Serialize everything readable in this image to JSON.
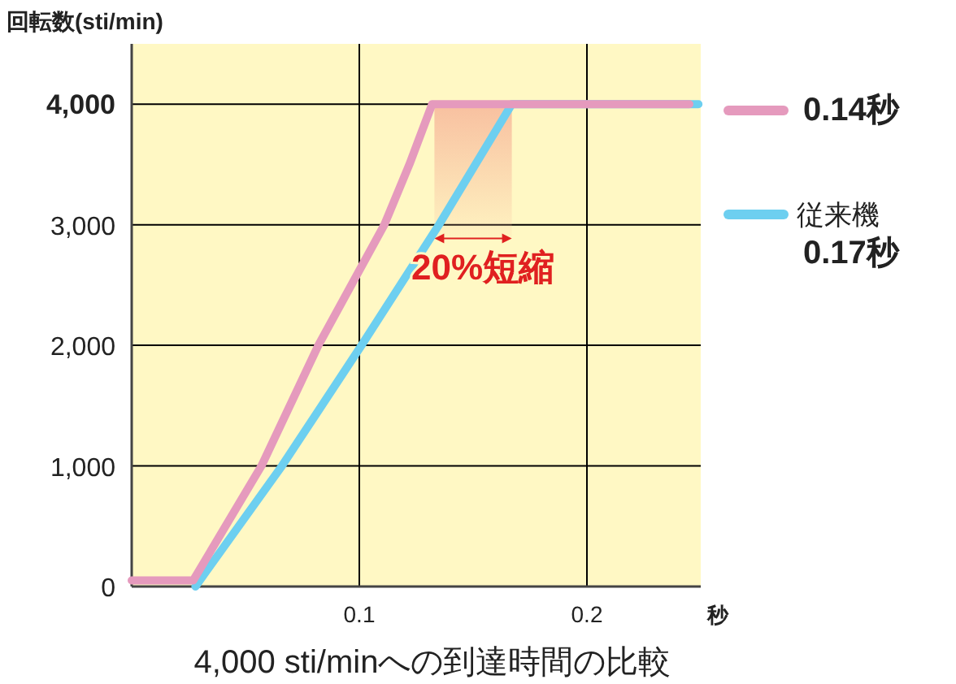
{
  "chart_data": {
    "type": "line",
    "title": "4,000 sti/minへの到達時間の比較",
    "xlabel": "秒",
    "ylabel": "回転数(sti/min)",
    "xlim": [
      0,
      0.25
    ],
    "xticks": [
      0.1,
      0.2
    ],
    "ylim": [
      0,
      4500
    ],
    "yticks": [
      {
        "value": 0,
        "label": "0"
      },
      {
        "value": 1000,
        "label": "1,000"
      },
      {
        "value": 2000,
        "label": "2,000"
      },
      {
        "value": 3000,
        "label": "3,000"
      },
      {
        "value": 4000,
        "label": "4,000"
      }
    ],
    "grid": true,
    "legend": "right",
    "line_style": "solid",
    "marker": "none",
    "series": [
      {
        "name": "従来機 0.17秒",
        "color": "#6dcff0",
        "x": [
          0.028,
          0.066,
          0.101,
          0.135,
          0.167,
          0.249
        ],
        "values": [
          0,
          1000,
          2000,
          3000,
          4000,
          4000
        ]
      },
      {
        "name": "0.14秒",
        "color": "#e59abd",
        "x": [
          0,
          0.027,
          0.057,
          0.082,
          0.111,
          0.122,
          0.132,
          0.245
        ],
        "values": [
          50,
          50,
          1000,
          2000,
          3000,
          3500,
          4000,
          4000
        ]
      }
    ],
    "bands": [
      {
        "axis": "x",
        "from": 0.133,
        "to": 0.167,
        "color": "#f8c0a0"
      }
    ],
    "annotations": [
      {
        "text": "20%短縮",
        "x": 0.15,
        "y": 2900
      }
    ]
  }
}
